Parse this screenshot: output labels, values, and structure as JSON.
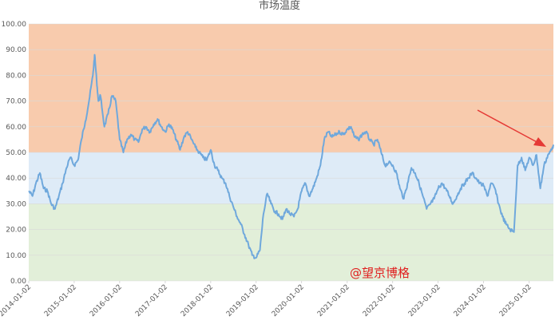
{
  "chart_data": {
    "type": "line",
    "title": "市场温度",
    "xlabel": "",
    "ylabel": "",
    "ylim": [
      0,
      100
    ],
    "y_ticks": [
      "0.00",
      "10.00",
      "20.00",
      "30.00",
      "40.00",
      "50.00",
      "60.00",
      "70.00",
      "80.00",
      "90.00",
      "100.00"
    ],
    "x_ticks": [
      "2014-01-02",
      "2015-01-02",
      "2016-01-02",
      "2017-01-02",
      "2018-01-02",
      "2019-01-02",
      "2020-01-02",
      "2021-01-02",
      "2022-01-02",
      "2023-01-02",
      "2024-01-02",
      "2025-01-02"
    ],
    "x_range": [
      "2014-01-02",
      "2025-07-15"
    ],
    "bands": [
      {
        "from": 0,
        "to": 30,
        "color": "#e2efd9"
      },
      {
        "from": 30,
        "to": 50,
        "color": "#deebf7"
      },
      {
        "from": 50,
        "to": 100,
        "color": "#f8cbad"
      }
    ],
    "grid": true,
    "legend": "none",
    "series": [
      {
        "color": "#6fa8dc",
        "points": [
          [
            "2014-01-02",
            35
          ],
          [
            "2014-02-01",
            33
          ],
          [
            "2014-03-01",
            38
          ],
          [
            "2014-04-01",
            42
          ],
          [
            "2014-05-01",
            36
          ],
          [
            "2014-06-01",
            35
          ],
          [
            "2014-07-01",
            30
          ],
          [
            "2014-08-01",
            28
          ],
          [
            "2014-09-01",
            33
          ],
          [
            "2014-10-01",
            38
          ],
          [
            "2014-11-01",
            44
          ],
          [
            "2014-12-01",
            48
          ],
          [
            "2015-01-02",
            45
          ],
          [
            "2015-02-01",
            47
          ],
          [
            "2015-03-01",
            55
          ],
          [
            "2015-04-01",
            62
          ],
          [
            "2015-05-01",
            70
          ],
          [
            "2015-06-01",
            80
          ],
          [
            "2015-06-15",
            88
          ],
          [
            "2015-07-01",
            78
          ],
          [
            "2015-07-15",
            70
          ],
          [
            "2015-08-01",
            72
          ],
          [
            "2015-09-01",
            60
          ],
          [
            "2015-10-01",
            65
          ],
          [
            "2015-11-01",
            72
          ],
          [
            "2015-12-01",
            70
          ],
          [
            "2016-01-02",
            55
          ],
          [
            "2016-02-01",
            50
          ],
          [
            "2016-03-01",
            55
          ],
          [
            "2016-04-01",
            57
          ],
          [
            "2016-05-01",
            55
          ],
          [
            "2016-06-01",
            54
          ],
          [
            "2016-07-01",
            59
          ],
          [
            "2016-08-01",
            60
          ],
          [
            "2016-09-01",
            58
          ],
          [
            "2016-10-01",
            61
          ],
          [
            "2016-11-01",
            63
          ],
          [
            "2016-12-01",
            60
          ],
          [
            "2017-01-02",
            58
          ],
          [
            "2017-02-01",
            61
          ],
          [
            "2017-03-01",
            59
          ],
          [
            "2017-04-01",
            55
          ],
          [
            "2017-05-01",
            51
          ],
          [
            "2017-06-01",
            56
          ],
          [
            "2017-07-01",
            58
          ],
          [
            "2017-08-01",
            55
          ],
          [
            "2017-09-01",
            52
          ],
          [
            "2017-10-01",
            50
          ],
          [
            "2017-11-01",
            48
          ],
          [
            "2017-12-01",
            47
          ],
          [
            "2018-01-02",
            51
          ],
          [
            "2018-02-01",
            45
          ],
          [
            "2018-03-01",
            43
          ],
          [
            "2018-04-01",
            40
          ],
          [
            "2018-05-01",
            38
          ],
          [
            "2018-06-01",
            33
          ],
          [
            "2018-07-01",
            29
          ],
          [
            "2018-08-01",
            25
          ],
          [
            "2018-09-01",
            22
          ],
          [
            "2018-10-01",
            18
          ],
          [
            "2018-11-01",
            14
          ],
          [
            "2018-12-01",
            10
          ],
          [
            "2019-01-02",
            9
          ],
          [
            "2019-02-01",
            12
          ],
          [
            "2019-03-01",
            26
          ],
          [
            "2019-04-01",
            34
          ],
          [
            "2019-05-01",
            30
          ],
          [
            "2019-06-01",
            27
          ],
          [
            "2019-07-01",
            26
          ],
          [
            "2019-08-01",
            24
          ],
          [
            "2019-09-01",
            28
          ],
          [
            "2019-10-01",
            26
          ],
          [
            "2019-11-01",
            25
          ],
          [
            "2019-12-01",
            28
          ],
          [
            "2020-01-02",
            35
          ],
          [
            "2020-02-01",
            38
          ],
          [
            "2020-03-01",
            33
          ],
          [
            "2020-04-01",
            36
          ],
          [
            "2020-05-01",
            40
          ],
          [
            "2020-06-01",
            45
          ],
          [
            "2020-07-01",
            55
          ],
          [
            "2020-08-01",
            58
          ],
          [
            "2020-09-01",
            56
          ],
          [
            "2020-10-01",
            57
          ],
          [
            "2020-11-01",
            58
          ],
          [
            "2020-12-01",
            57
          ],
          [
            "2021-01-02",
            59
          ],
          [
            "2021-02-01",
            60
          ],
          [
            "2021-03-01",
            56
          ],
          [
            "2021-04-01",
            55
          ],
          [
            "2021-05-01",
            57
          ],
          [
            "2021-06-01",
            58
          ],
          [
            "2021-07-01",
            55
          ],
          [
            "2021-08-01",
            53
          ],
          [
            "2021-09-01",
            55
          ],
          [
            "2021-10-01",
            50
          ],
          [
            "2021-11-01",
            45
          ],
          [
            "2021-12-01",
            46
          ],
          [
            "2022-01-02",
            45
          ],
          [
            "2022-02-01",
            42
          ],
          [
            "2022-03-01",
            36
          ],
          [
            "2022-04-01",
            32
          ],
          [
            "2022-05-01",
            38
          ],
          [
            "2022-06-01",
            44
          ],
          [
            "2022-07-01",
            42
          ],
          [
            "2022-08-01",
            38
          ],
          [
            "2022-09-01",
            33
          ],
          [
            "2022-10-01",
            28
          ],
          [
            "2022-11-01",
            30
          ],
          [
            "2022-12-01",
            32
          ],
          [
            "2023-01-02",
            36
          ],
          [
            "2023-02-01",
            38
          ],
          [
            "2023-03-01",
            36
          ],
          [
            "2023-04-01",
            33
          ],
          [
            "2023-05-01",
            30
          ],
          [
            "2023-06-01",
            33
          ],
          [
            "2023-07-01",
            36
          ],
          [
            "2023-08-01",
            38
          ],
          [
            "2023-09-01",
            40
          ],
          [
            "2023-10-01",
            42
          ],
          [
            "2023-11-01",
            40
          ],
          [
            "2023-12-01",
            38
          ],
          [
            "2024-01-02",
            37
          ],
          [
            "2024-02-01",
            33
          ],
          [
            "2024-03-01",
            38
          ],
          [
            "2024-04-01",
            36
          ],
          [
            "2024-05-01",
            30
          ],
          [
            "2024-06-01",
            25
          ],
          [
            "2024-07-01",
            22
          ],
          [
            "2024-08-01",
            20
          ],
          [
            "2024-09-01",
            19
          ],
          [
            "2024-10-01",
            45
          ],
          [
            "2024-11-01",
            48
          ],
          [
            "2024-12-01",
            43
          ],
          [
            "2025-01-02",
            48
          ],
          [
            "2025-02-01",
            45
          ],
          [
            "2025-03-01",
            49
          ],
          [
            "2025-04-01",
            36
          ],
          [
            "2025-05-01",
            45
          ],
          [
            "2025-06-01",
            49
          ],
          [
            "2025-07-01",
            51
          ],
          [
            "2025-07-15",
            53
          ]
        ]
      }
    ],
    "annotations": {
      "watermark": "@望京博格",
      "arrow_note": "recent upward move"
    }
  }
}
